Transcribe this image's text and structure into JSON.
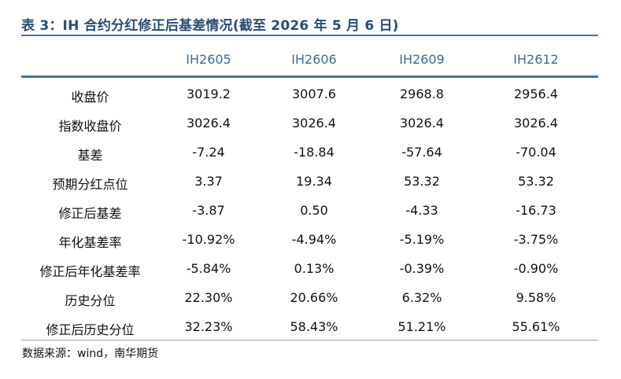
{
  "title": "表 3：IH 合约分红修正后基差情况(截至 2026 年 5 月 6 日)",
  "table": {
    "columns": [
      "",
      "IH2605",
      "IH2606",
      "IH2609",
      "IH2612"
    ],
    "rows": [
      [
        "收盘价",
        "3019.2",
        "3007.6",
        "2968.8",
        "2956.4"
      ],
      [
        "指数收盘价",
        "3026.4",
        "3026.4",
        "3026.4",
        "3026.4"
      ],
      [
        "基差",
        "-7.24",
        "-18.84",
        "-57.64",
        "-70.04"
      ],
      [
        "预期分红点位",
        "3.37",
        "19.34",
        "53.32",
        "53.32"
      ],
      [
        "修正后基差",
        "-3.87",
        "0.50",
        "-4.33",
        "-16.73"
      ],
      [
        "年化基差率",
        "-10.92%",
        "-4.94%",
        "-5.19%",
        "-3.75%"
      ],
      [
        "修正后年化基差率",
        "-5.84%",
        "0.13%",
        "-0.39%",
        "-0.90%"
      ],
      [
        "历史分位",
        "22.30%",
        "20.66%",
        "6.32%",
        "9.58%"
      ],
      [
        "修正后历史分位",
        "32.23%",
        "58.43%",
        "51.21%",
        "55.61%"
      ]
    ]
  },
  "source": "数据来源：wind，南华期货",
  "colors": {
    "title": "#2b4b73",
    "header_text": "#3f6a94",
    "rule": "#4f6f95"
  }
}
